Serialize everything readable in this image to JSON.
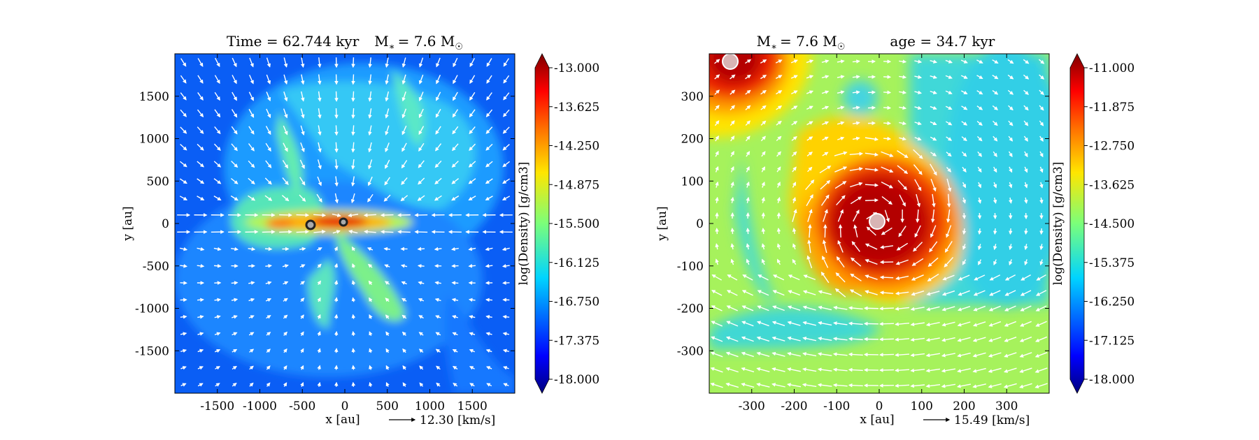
{
  "chart_data": [
    {
      "type": "heatmap",
      "title": "Time = 62.744 kyr    M$_*$ = 7.6 M$_\\odot$",
      "title_parts": {
        "time_label": "Time = 62.744 kyr",
        "mass_label": "M",
        "mass_sub": "∗",
        "mass_value": "= 7.6 M",
        "mass_unit_sub": "☉"
      },
      "xlabel": "x [au]",
      "ylabel": "y [au]",
      "xlim": [
        -2000,
        2000
      ],
      "ylim": [
        -2000,
        2000
      ],
      "xticks": [
        "-1500",
        "-1000",
        "-500",
        "0",
        "500",
        "1000",
        "1500"
      ],
      "xtick_values": [
        -1500,
        -1000,
        -500,
        0,
        500,
        1000,
        1500
      ],
      "yticks": [
        "1500",
        "1000",
        "500",
        "0",
        "-500",
        "-1000",
        "-1500"
      ],
      "ytick_values": [
        1500,
        1000,
        500,
        0,
        -500,
        -1000,
        -1500
      ],
      "colorbar": {
        "label": "log(Density) [g/cm3]",
        "min": -18.0,
        "max": -13.0,
        "ticks": [
          "-13.000",
          "-13.625",
          "-14.250",
          "-14.875",
          "-15.500",
          "-16.125",
          "-16.750",
          "-17.375",
          "-18.000"
        ],
        "tick_values": [
          -13.0,
          -13.625,
          -14.25,
          -14.875,
          -15.5,
          -16.125,
          -16.75,
          -17.375,
          -18.0
        ]
      },
      "velocity_key": {
        "value_label": "12.30 [km/s]",
        "value": 12.3
      },
      "sinks": [
        {
          "x": -400,
          "y": -20
        },
        {
          "x": 0,
          "y": 0
        }
      ]
    },
    {
      "type": "heatmap",
      "title": "M$_*$ = 7.6 M$_\\odot$    age = 34.7 kyr",
      "title_parts": {
        "mass_label": "M",
        "mass_sub": "∗",
        "mass_value": "= 7.6 M",
        "mass_unit_sub": "☉",
        "age_label": "age = 34.7 kyr"
      },
      "xlabel": "x [au]",
      "ylabel": "y [au]",
      "xlim": [
        -400,
        400
      ],
      "ylim": [
        -400,
        400
      ],
      "xticks": [
        "-300",
        "-200",
        "-100",
        "0",
        "100",
        "200",
        "300"
      ],
      "xtick_values": [
        -300,
        -200,
        -100,
        0,
        100,
        200,
        300
      ],
      "yticks": [
        "300",
        "200",
        "100",
        "0",
        "-100",
        "-200",
        "-300"
      ],
      "ytick_values": [
        300,
        200,
        100,
        0,
        -100,
        -200,
        -300
      ],
      "colorbar": {
        "label": "log(Density) [g/cm3]",
        "min": -18.0,
        "max": -11.0,
        "ticks": [
          "-11.000",
          "-11.875",
          "-12.750",
          "-13.625",
          "-14.500",
          "-15.375",
          "-16.250",
          "-17.125",
          "-18.000"
        ],
        "tick_values": [
          -11.0,
          -11.875,
          -12.75,
          -13.625,
          -14.5,
          -15.375,
          -16.25,
          -17.125,
          -18.0
        ]
      },
      "velocity_key": {
        "value_label": "15.49 [km/s]",
        "value": 15.49
      },
      "sinks": [
        {
          "x": 0,
          "y": 0
        },
        {
          "x": -345,
          "y": 375
        }
      ]
    }
  ]
}
